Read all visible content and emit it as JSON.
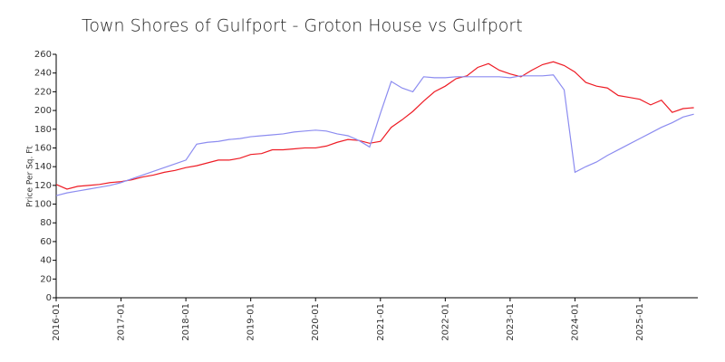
{
  "chart_data": {
    "type": "line",
    "title": "Town Shores of Gulfport - Groton House vs Gulfport",
    "y_label": "Price Per Sq. Ft",
    "x": [
      "2016-01",
      "2016-03",
      "2016-05",
      "2016-07",
      "2016-09",
      "2016-11",
      "2017-01",
      "2017-03",
      "2017-05",
      "2017-07",
      "2017-09",
      "2017-11",
      "2018-01",
      "2018-03",
      "2018-05",
      "2018-07",
      "2018-09",
      "2018-11",
      "2019-01",
      "2019-03",
      "2019-05",
      "2019-07",
      "2019-09",
      "2019-11",
      "2020-01",
      "2020-03",
      "2020-05",
      "2020-07",
      "2020-09",
      "2020-11",
      "2021-01",
      "2021-03",
      "2021-05",
      "2021-07",
      "2021-09",
      "2021-11",
      "2022-01",
      "2022-03",
      "2022-05",
      "2022-07",
      "2022-09",
      "2022-11",
      "2023-01",
      "2023-03",
      "2023-05",
      "2023-07",
      "2023-09",
      "2023-11",
      "2024-01",
      "2024-03",
      "2024-05",
      "2024-07",
      "2024-09",
      "2024-11",
      "2025-01",
      "2025-03",
      "2025-05",
      "2025-07",
      "2025-09",
      "2025-11"
    ],
    "series": [
      {
        "color": "#ee1c25",
        "values": [
          121,
          116,
          119,
          120,
          121,
          123,
          124,
          126,
          129,
          131,
          134,
          136,
          139,
          141,
          144,
          147,
          147,
          149,
          153,
          154,
          158,
          158,
          159,
          160,
          160,
          162,
          166,
          169,
          168,
          165,
          167,
          182,
          190,
          199,
          210,
          220,
          226,
          234,
          237,
          246,
          250,
          243,
          239,
          236,
          243,
          249,
          252,
          248,
          241,
          230,
          226,
          224,
          216,
          214,
          212,
          206,
          211,
          198,
          202,
          203
        ]
      },
      {
        "color": "#8c8cf0",
        "values": [
          109,
          112,
          114,
          116,
          118,
          120,
          123,
          127,
          131,
          135,
          139,
          143,
          147,
          164,
          166,
          167,
          169,
          170,
          172,
          173,
          174,
          175,
          177,
          178,
          179,
          178,
          175,
          173,
          168,
          161,
          197,
          231,
          224,
          220,
          236,
          235,
          235,
          236,
          236,
          236,
          236,
          236,
          235,
          237,
          237,
          237,
          238,
          222,
          134,
          140,
          145,
          152,
          158,
          164,
          170,
          176,
          182,
          187,
          193,
          196
        ]
      }
    ],
    "xticks": [
      "2016-01",
      "2017-01",
      "2018-01",
      "2019-01",
      "2020-01",
      "2021-01",
      "2022-01",
      "2023-01",
      "2024-01",
      "2025-01"
    ],
    "ylim": [
      0,
      260
    ],
    "yticks": [
      0,
      20,
      40,
      60,
      80,
      100,
      120,
      140,
      160,
      180,
      200,
      220,
      240,
      260
    ]
  }
}
